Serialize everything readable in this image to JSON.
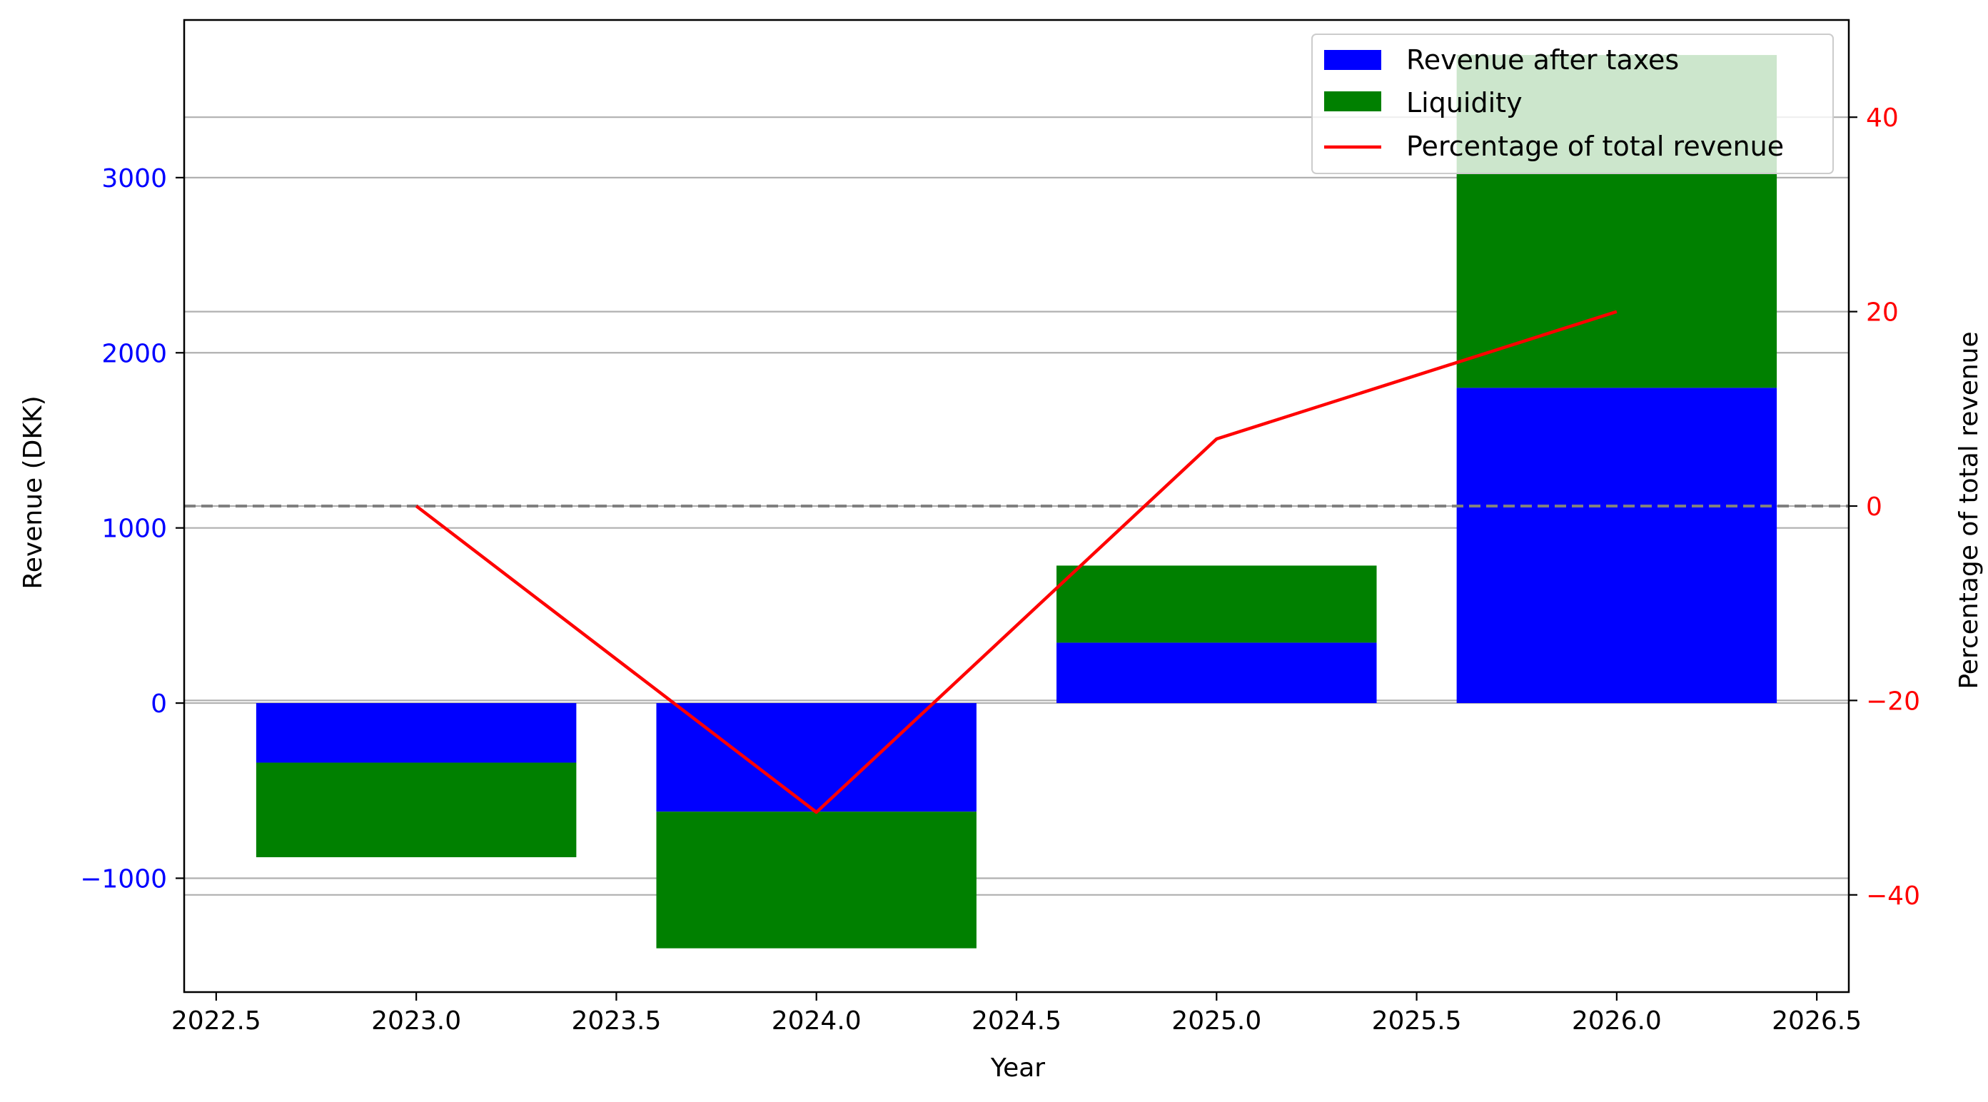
{
  "chart_data": {
    "type": "bar",
    "x": [
      2023,
      2024,
      2025,
      2026
    ],
    "series": [
      {
        "name": "Revenue after taxes",
        "type": "bar",
        "axis": "left",
        "color": "#0000ff",
        "values": [
          -340,
          -620,
          345,
          1800
        ]
      },
      {
        "name": "Liquidity",
        "type": "bar",
        "axis": "left",
        "color": "#008000",
        "base": [
          -340,
          -620,
          345,
          1800
        ],
        "values": [
          -540,
          -780,
          440,
          1900
        ],
        "alpha_over_top": 0.2
      },
      {
        "name": "Percentage of total revenue",
        "type": "line",
        "axis": "right",
        "color": "#ff0000",
        "values": [
          0,
          -31.5,
          6.9,
          20
        ]
      }
    ],
    "xlabel": "Year",
    "ylabel_left": "Revenue (DKK)",
    "ylabel_right": "Percentage of total revenue",
    "xlim": [
      2022.42,
      2026.58
    ],
    "ylim_left": [
      -1650,
      3900
    ],
    "ylim_right": [
      -50,
      50
    ],
    "x_ticks": [
      "2022.5",
      "2023.0",
      "2023.5",
      "2024.0",
      "2024.5",
      "2025.0",
      "2025.5",
      "2026.0",
      "2026.5"
    ],
    "y_ticks_left": [
      "−1000",
      "0",
      "1000",
      "2000",
      "3000"
    ],
    "y_ticks_right": [
      "−40",
      "−20",
      "0",
      "20",
      "40"
    ],
    "left_tick_color": "#0000ff",
    "right_tick_color": "#ff0000",
    "zero_line_right": 0,
    "grid": true,
    "legend_position": "top-right"
  }
}
